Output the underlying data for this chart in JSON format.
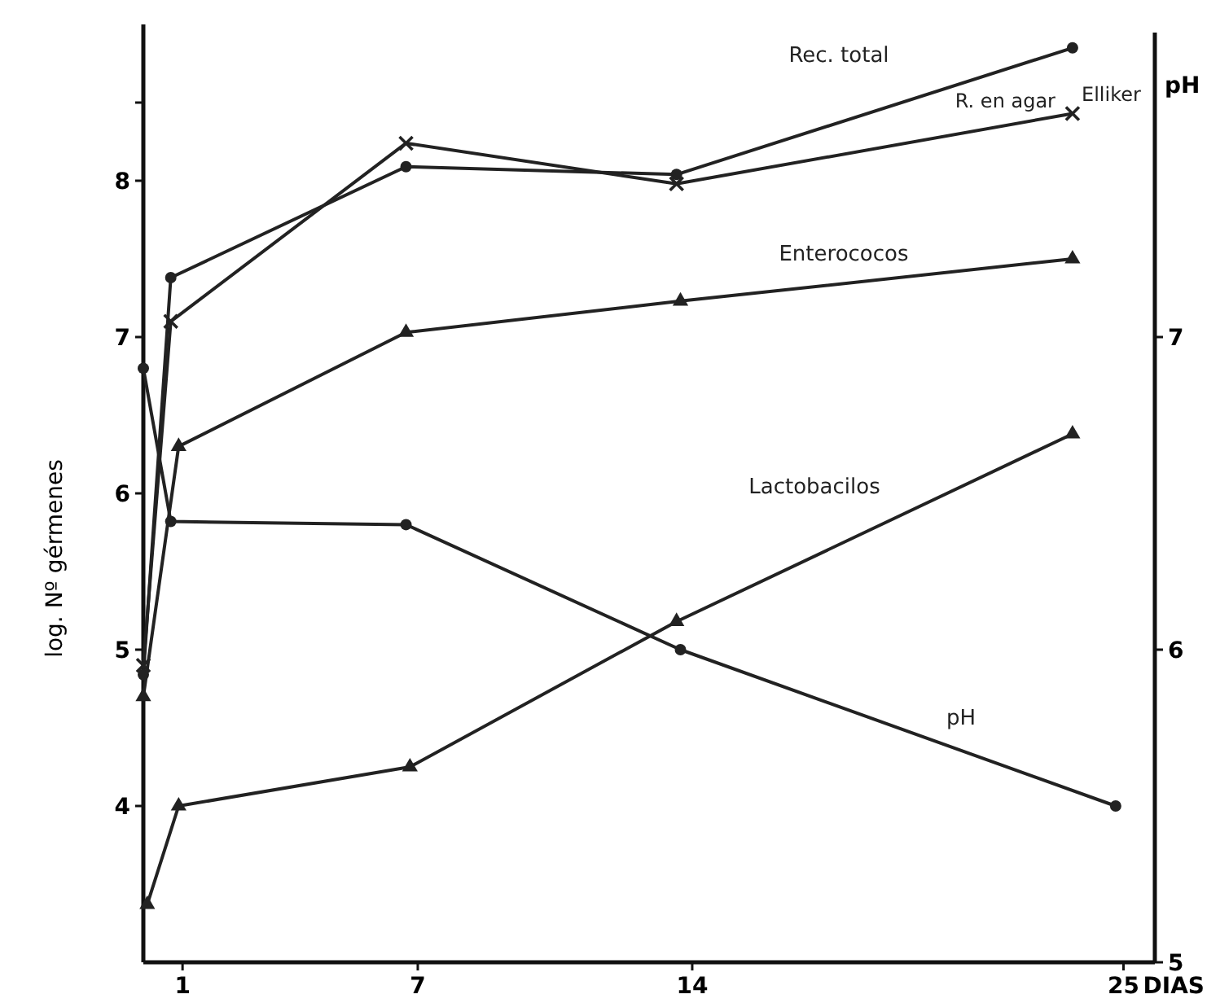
{
  "chart_data": {
    "type": "line",
    "xlabel": "DIAS",
    "ylabel": "log. Nº gérmenes",
    "y2label": "pH",
    "xlim": [
      0,
      25.8
    ],
    "xticks": [
      1,
      7,
      14,
      25
    ],
    "ylim": [
      3,
      9
    ],
    "yticks": [
      4,
      5,
      6,
      7,
      8,
      {
        "value": 8.5,
        "label": null
      }
    ],
    "y2lim": [
      5,
      8
    ],
    "y2ticks": [
      5,
      6,
      7
    ],
    "grid": false,
    "line_style": "solid",
    "series": [
      {
        "name": "Rec. total",
        "color": "#222222",
        "marker": "circle",
        "x": [
          0,
          0.7,
          6.7,
          13.6,
          23.7
        ],
        "values": [
          4.84,
          7.38,
          8.09,
          8.04,
          8.85
        ]
      },
      {
        "name": "R. en agar Elliker",
        "color": "#222222",
        "marker": "cross",
        "x": [
          0,
          0.7,
          6.7,
          13.6,
          23.7
        ],
        "values": [
          4.9,
          7.1,
          8.24,
          7.98,
          8.43
        ]
      },
      {
        "name": "Enterococos",
        "color": "#222222",
        "marker": "triangle",
        "x": [
          0,
          0.9,
          6.7,
          13.7,
          23.7
        ],
        "values": [
          4.7,
          6.3,
          7.03,
          7.23,
          7.5
        ]
      },
      {
        "name": "Lactobacilos",
        "color": "#222222",
        "marker": "triangle",
        "x": [
          0.1,
          0.9,
          6.8,
          13.6,
          23.7
        ],
        "values": [
          3.37,
          4.0,
          4.25,
          5.18,
          6.38
        ]
      },
      {
        "name": "pH",
        "color": "#222222",
        "marker": "circle",
        "axis": "y2",
        "x": [
          0,
          0.7,
          6.7,
          13.7,
          24.8
        ],
        "values": [
          6.9,
          6.41,
          6.4,
          6.0,
          5.5
        ]
      }
    ]
  }
}
